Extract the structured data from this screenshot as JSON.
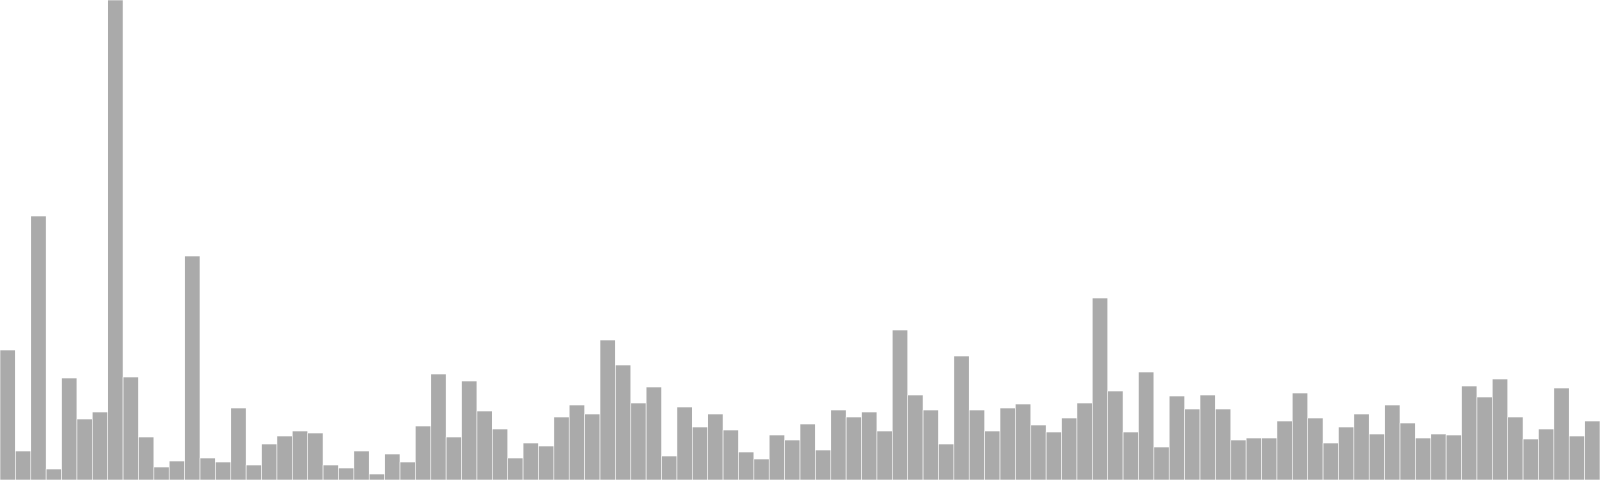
{
  "colors": {
    "bar_fill": "#aaaaaa",
    "bar_stroke": "#ffffff",
    "background": "#ffffff"
  },
  "chart_data": {
    "type": "bar",
    "title": "",
    "xlabel": "",
    "ylabel": "",
    "grid": false,
    "legend": "none",
    "ylim": [
      0,
      480
    ],
    "values": [
      130,
      29,
      264,
      11,
      102,
      61,
      68,
      480,
      103,
      43,
      13,
      19,
      224,
      22,
      18,
      72,
      15,
      36,
      44,
      49,
      47,
      15,
      12,
      29,
      6,
      26,
      18,
      54,
      106,
      43,
      99,
      69,
      51,
      22,
      37,
      34,
      63,
      75,
      66,
      140,
      115,
      77,
      93,
      24,
      73,
      53,
      66,
      50,
      28,
      21,
      45,
      40,
      56,
      30,
      70,
      63,
      68,
      49,
      150,
      85,
      70,
      36,
      124,
      70,
      49,
      72,
      76,
      55,
      48,
      62,
      77,
      182,
      89,
      48,
      108,
      33,
      84,
      71,
      85,
      71,
      40,
      42,
      42,
      59,
      87,
      62,
      37,
      53,
      66,
      46,
      75,
      57,
      42,
      46,
      45,
      94,
      83,
      101,
      63,
      41,
      51,
      92,
      44,
      59
    ]
  }
}
